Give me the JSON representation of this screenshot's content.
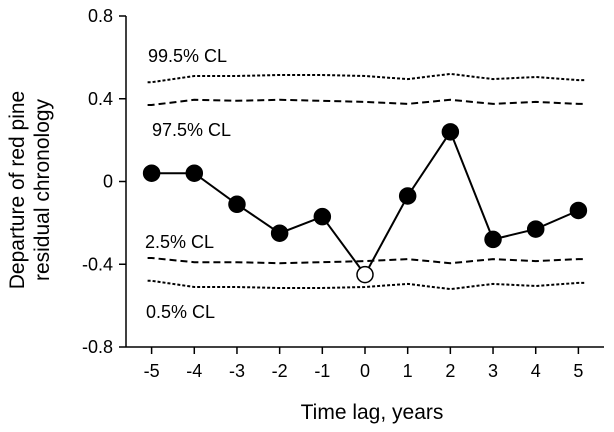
{
  "chart_data": {
    "type": "line",
    "title": "",
    "xlabel": "Time lag, years",
    "ylabel_line1": "Departure of red pine",
    "ylabel_line2": "residual chronology",
    "x": [
      -5,
      -4,
      -3,
      -2,
      -1,
      0,
      1,
      2,
      3,
      4,
      5
    ],
    "xlim": [
      -5.6,
      5.6
    ],
    "ylim": [
      -0.8,
      0.8
    ],
    "x_ticks": [
      -5,
      -4,
      -3,
      -2,
      -1,
      0,
      1,
      2,
      3,
      4,
      5
    ],
    "x_tick_labels": [
      "-5",
      "-4",
      "-3",
      "-2",
      "-1",
      "0",
      "1",
      "2",
      "3",
      "4",
      "5"
    ],
    "y_ticks": [
      -0.8,
      -0.4,
      0,
      0.4,
      0.8
    ],
    "y_tick_labels": [
      "-0.8",
      "-0.4",
      "0",
      "0.4",
      "0.8"
    ],
    "grid": false,
    "series": [
      {
        "values": [
          0.04,
          0.04,
          -0.11,
          -0.25,
          -0.17,
          -0.45,
          -0.07,
          0.24,
          -0.28,
          -0.23,
          -0.14
        ],
        "marker": "circle",
        "marker_fill": "#000000",
        "open_marker_x": [
          0
        ],
        "open_marker_fill": "#ffffff",
        "color": "#000000"
      }
    ],
    "confidence_limits": [
      {
        "label": "99.5% CL",
        "dash": "dotted",
        "values": [
          0.48,
          0.51,
          0.51,
          0.515,
          0.515,
          0.51,
          0.495,
          0.52,
          0.495,
          0.505,
          0.49
        ]
      },
      {
        "label": "97.5% CL",
        "dash": "dashed",
        "values": [
          0.37,
          0.395,
          0.39,
          0.395,
          0.39,
          0.385,
          0.375,
          0.395,
          0.375,
          0.385,
          0.375
        ]
      },
      {
        "label": "2.5% CL",
        "dash": "dashed",
        "values": [
          -0.37,
          -0.39,
          -0.39,
          -0.395,
          -0.39,
          -0.385,
          -0.375,
          -0.395,
          -0.375,
          -0.385,
          -0.375
        ]
      },
      {
        "label": "0.5% CL",
        "dash": "dotted",
        "values": [
          -0.48,
          -0.51,
          -0.51,
          -0.515,
          -0.515,
          -0.51,
          -0.495,
          -0.52,
          -0.495,
          -0.505,
          -0.49
        ]
      }
    ]
  }
}
